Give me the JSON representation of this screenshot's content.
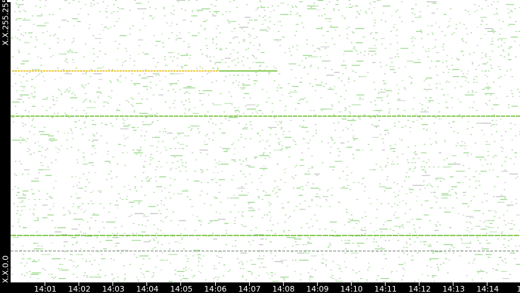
{
  "chart_data": {
    "type": "scatter",
    "title": "",
    "y_tick_labels": {
      "top": "X.X.255.255",
      "bottom": "X.X.0.0"
    },
    "x_tick_labels": [
      "14:01",
      "14:02",
      "14:03",
      "14:04",
      "14:05",
      "14:06",
      "14:07",
      "14:08",
      "14:09",
      "14:10",
      "14:11",
      "14:12",
      "14:13",
      "14:14",
      "14"
    ],
    "grid": false,
    "background": "#ffffff",
    "colors": {
      "points": "#7ccd6a",
      "points_gray": "#b0b0b0",
      "highlight_line": "#e8b800",
      "green_line": "#66bb22",
      "axis_bg": "#000000",
      "axis_text": "#ffffff"
    },
    "highlighted_rows": [
      {
        "color": "orange-then-green",
        "end_time": "14:07:55"
      },
      {
        "color": "green",
        "end_time": "end"
      },
      {
        "color": "green",
        "end_time": "end"
      }
    ]
  }
}
